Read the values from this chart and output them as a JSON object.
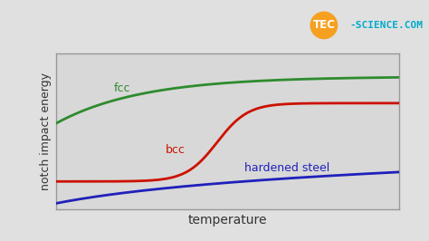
{
  "title": "",
  "xlabel": "temperature",
  "ylabel": "notch impact energy",
  "fig_bg_color": "#e0e0e0",
  "plot_bg_color": "#d8d8d8",
  "grid_color": "#ffffff",
  "fcc_color": "#2e8b2e",
  "bcc_color": "#cc1100",
  "hardened_color": "#2020bb",
  "fcc_label": "fcc",
  "bcc_label": "bcc",
  "hardened_label": "hardened steel",
  "xlabel_fontsize": 10,
  "ylabel_fontsize": 9,
  "label_fontsize": 9,
  "line_width": 2.0,
  "spine_color": "#999999",
  "logo_tec": "TEC",
  "logo_rest": "-SCIENCE.COM",
  "logo_circle_color": "#f5a020",
  "logo_text_color": "#00aacc"
}
